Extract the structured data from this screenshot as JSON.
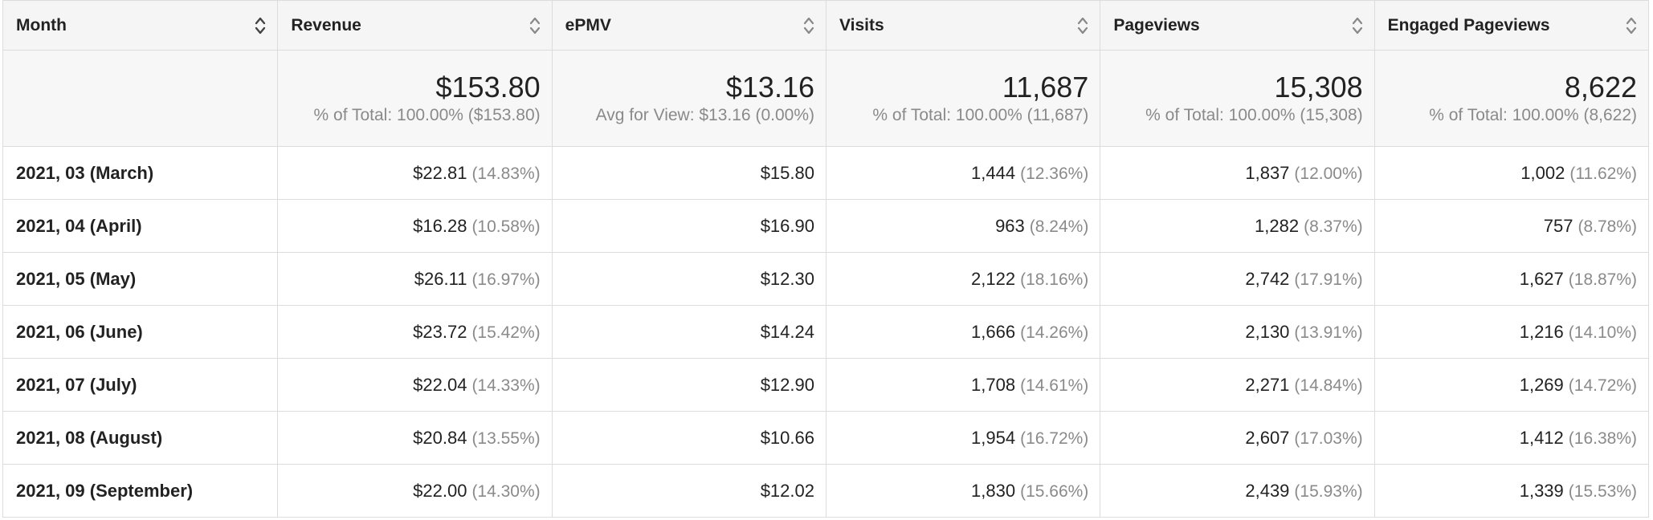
{
  "columns": [
    {
      "label": "Month"
    },
    {
      "label": "Revenue"
    },
    {
      "label": "ePMV"
    },
    {
      "label": "Visits"
    },
    {
      "label": "Pageviews"
    },
    {
      "label": "Engaged Pageviews"
    }
  ],
  "totals": [
    {
      "value": "$153.80",
      "sub": "% of Total: 100.00% ($153.80)"
    },
    {
      "value": "$13.16",
      "sub": "Avg for View: $13.16 (0.00%)"
    },
    {
      "value": "11,687",
      "sub": "% of Total: 100.00% (11,687)"
    },
    {
      "value": "15,308",
      "sub": "% of Total: 100.00% (15,308)"
    },
    {
      "value": "8,622",
      "sub": "% of Total: 100.00% (8,622)"
    }
  ],
  "rows": [
    {
      "month": "2021, 03 (March)",
      "cells": [
        {
          "value": "$22.81",
          "pct": "(14.83%)"
        },
        {
          "value": "$15.80",
          "pct": ""
        },
        {
          "value": "1,444",
          "pct": "(12.36%)"
        },
        {
          "value": "1,837",
          "pct": "(12.00%)"
        },
        {
          "value": "1,002",
          "pct": "(11.62%)"
        }
      ]
    },
    {
      "month": "2021, 04 (April)",
      "cells": [
        {
          "value": "$16.28",
          "pct": "(10.58%)"
        },
        {
          "value": "$16.90",
          "pct": ""
        },
        {
          "value": "963",
          "pct": "(8.24%)"
        },
        {
          "value": "1,282",
          "pct": "(8.37%)"
        },
        {
          "value": "757",
          "pct": "(8.78%)"
        }
      ]
    },
    {
      "month": "2021, 05 (May)",
      "cells": [
        {
          "value": "$26.11",
          "pct": "(16.97%)"
        },
        {
          "value": "$12.30",
          "pct": ""
        },
        {
          "value": "2,122",
          "pct": "(18.16%)"
        },
        {
          "value": "2,742",
          "pct": "(17.91%)"
        },
        {
          "value": "1,627",
          "pct": "(18.87%)"
        }
      ]
    },
    {
      "month": "2021, 06 (June)",
      "cells": [
        {
          "value": "$23.72",
          "pct": "(15.42%)"
        },
        {
          "value": "$14.24",
          "pct": ""
        },
        {
          "value": "1,666",
          "pct": "(14.26%)"
        },
        {
          "value": "2,130",
          "pct": "(13.91%)"
        },
        {
          "value": "1,216",
          "pct": "(14.10%)"
        }
      ]
    },
    {
      "month": "2021, 07 (July)",
      "cells": [
        {
          "value": "$22.04",
          "pct": "(14.33%)"
        },
        {
          "value": "$12.90",
          "pct": ""
        },
        {
          "value": "1,708",
          "pct": "(14.61%)"
        },
        {
          "value": "2,271",
          "pct": "(14.84%)"
        },
        {
          "value": "1,269",
          "pct": "(14.72%)"
        }
      ]
    },
    {
      "month": "2021, 08 (August)",
      "cells": [
        {
          "value": "$20.84",
          "pct": "(13.55%)"
        },
        {
          "value": "$10.66",
          "pct": ""
        },
        {
          "value": "1,954",
          "pct": "(16.72%)"
        },
        {
          "value": "2,607",
          "pct": "(17.03%)"
        },
        {
          "value": "1,412",
          "pct": "(16.38%)"
        }
      ]
    },
    {
      "month": "2021, 09 (September)",
      "cells": [
        {
          "value": "$22.00",
          "pct": "(14.30%)"
        },
        {
          "value": "$12.02",
          "pct": ""
        },
        {
          "value": "1,830",
          "pct": "(15.66%)"
        },
        {
          "value": "2,439",
          "pct": "(15.93%)"
        },
        {
          "value": "1,339",
          "pct": "(15.53%)"
        }
      ]
    }
  ],
  "icons": {
    "sort": "sort-updown-icon"
  },
  "colors": {
    "header_bg": "#f5f5f5",
    "border": "#dcdcdc",
    "muted_text": "#8a8a8a"
  }
}
